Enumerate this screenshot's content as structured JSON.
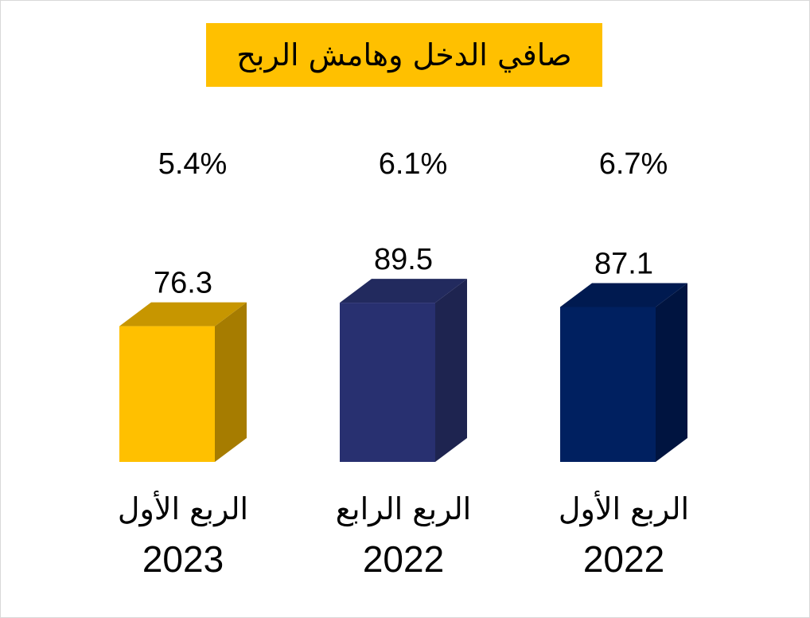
{
  "chart_data": {
    "type": "bar",
    "title": "صافي الدخل وهامش الربح",
    "categories": [
      {
        "label": "الربع الأول",
        "year": "2023"
      },
      {
        "label": "الربع الرابع",
        "year": "2022"
      },
      {
        "label": "الربع الأول",
        "year": "2022"
      }
    ],
    "series": [
      {
        "values": [
          76.3,
          89.5,
          87.1
        ],
        "value_labels": [
          "76.3",
          "89.5",
          "87.1"
        ],
        "colors": [
          "#ffc000",
          "#283070",
          "#002060"
        ],
        "side_colors": [
          "#a67c00",
          "#1e2450",
          "#001440"
        ],
        "top_colors": [
          "#c79600",
          "#222a5e",
          "#001a50"
        ]
      }
    ],
    "margins": [
      "5.4%",
      "6.1%",
      "6.7%"
    ],
    "style_3d": true,
    "grid": false,
    "legend": "none"
  }
}
